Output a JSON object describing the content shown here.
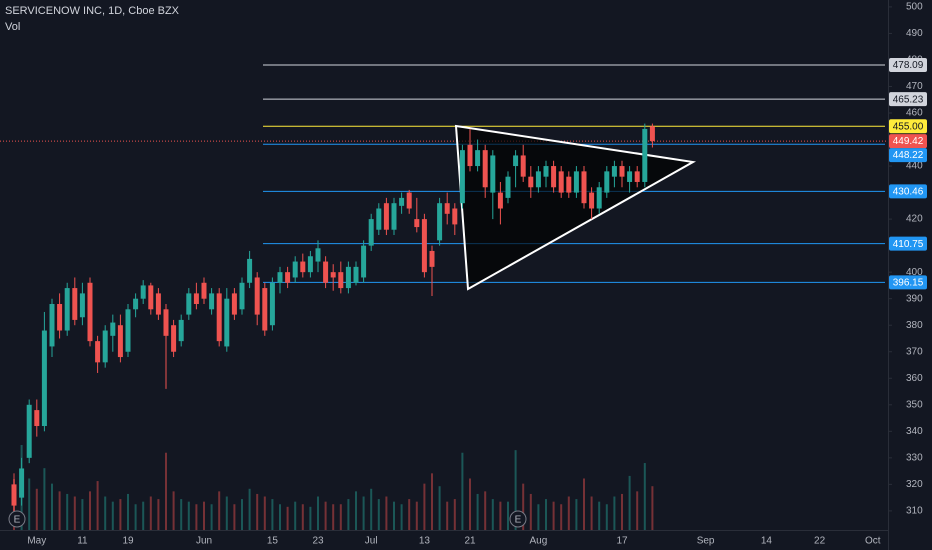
{
  "chart_data": {
    "type": "candlestick",
    "title": "SERVICENOW INC, 1D, Cboe BZX",
    "volume_label": "Vol",
    "events": [
      "E",
      "E"
    ],
    "up_color": "#26a69a",
    "down_color": "#ef5350",
    "categories": [
      null,
      null,
      null,
      "May",
      null,
      null,
      null,
      null,
      null,
      "11",
      null,
      null,
      null,
      null,
      null,
      "19",
      null,
      null,
      null,
      null,
      null,
      null,
      null,
      null,
      null,
      "Jun",
      null,
      null,
      null,
      null,
      null,
      null,
      null,
      null,
      "15",
      null,
      null,
      null,
      null,
      null,
      "23",
      null,
      null,
      null,
      null,
      null,
      null,
      "Jul",
      null,
      null,
      null,
      null,
      null,
      null,
      "13",
      null,
      null,
      null,
      null,
      null,
      "21",
      null,
      null,
      null,
      null,
      null,
      null,
      null,
      null,
      "Aug",
      null,
      null,
      null,
      null,
      null,
      null,
      null,
      null,
      null,
      null,
      "17",
      null,
      null,
      null,
      null,
      null,
      null,
      null,
      null,
      null,
      null,
      "Sep",
      null,
      null,
      null,
      null,
      null,
      null,
      null,
      "14",
      null,
      null,
      null,
      null,
      null,
      null,
      "22",
      null,
      null,
      null,
      null,
      null,
      null,
      "Oct",
      null,
      null
    ],
    "open": [
      320,
      315,
      330,
      348,
      342,
      372,
      388,
      378,
      394,
      383,
      396,
      374,
      366,
      376,
      380,
      370,
      386,
      390,
      395,
      392,
      386,
      380,
      374,
      384,
      392,
      396,
      386,
      392,
      372,
      392,
      386,
      396,
      398,
      394,
      380,
      396,
      400,
      398,
      404,
      400,
      404,
      404,
      400,
      400,
      394,
      396,
      398,
      410,
      416,
      426,
      416,
      425,
      430,
      420,
      420,
      408,
      412,
      426,
      424,
      426,
      448,
      440,
      446,
      430,
      430,
      428,
      440,
      444,
      436,
      432,
      436,
      440,
      438,
      436,
      430,
      438,
      430,
      424,
      430,
      436,
      440,
      434,
      438,
      434,
      455,
      null,
      null,
      null,
      null,
      null,
      null,
      null,
      null,
      null,
      null,
      null,
      null,
      null,
      null,
      null,
      null,
      null,
      null,
      null,
      null,
      null,
      null,
      null,
      null,
      null,
      null,
      null,
      null,
      null,
      null,
      null
    ],
    "high": [
      322,
      330,
      352,
      352,
      385,
      390,
      392,
      396,
      398,
      396,
      398,
      376,
      380,
      384,
      384,
      388,
      392,
      397,
      396,
      394,
      388,
      382,
      384,
      394,
      396,
      398,
      394,
      394,
      394,
      394,
      398,
      408,
      400,
      396,
      398,
      402,
      402,
      406,
      407,
      408,
      412,
      406,
      403,
      404,
      404,
      404,
      412,
      422,
      426,
      428,
      428,
      430,
      431,
      428,
      422,
      410,
      428,
      430,
      426,
      448,
      454,
      450,
      448,
      446,
      434,
      438,
      446,
      448,
      440,
      440,
      442,
      442,
      440,
      438,
      440,
      440,
      432,
      434,
      440,
      442,
      442,
      440,
      440,
      456,
      456,
      null,
      null,
      null,
      null,
      null,
      null,
      null,
      null,
      null,
      null,
      null,
      null,
      null,
      null,
      null,
      null,
      null,
      null,
      null,
      null,
      null,
      null,
      null,
      null,
      null,
      null,
      null,
      null,
      null,
      null,
      null
    ],
    "low": [
      309,
      312,
      328,
      338,
      340,
      368,
      375,
      376,
      380,
      380,
      372,
      362,
      364,
      370,
      366,
      368,
      383,
      388,
      384,
      382,
      356,
      368,
      372,
      382,
      386,
      388,
      384,
      372,
      370,
      382,
      384,
      394,
      380,
      376,
      378,
      392,
      394,
      396,
      398,
      398,
      400,
      394,
      393,
      392,
      392,
      395,
      396,
      408,
      414,
      414,
      414,
      422,
      422,
      415,
      398,
      391,
      410,
      418,
      414,
      424,
      438,
      438,
      428,
      420,
      418,
      426,
      432,
      434,
      428,
      430,
      432,
      430,
      428,
      428,
      428,
      424,
      420,
      422,
      428,
      432,
      432,
      430,
      432,
      432,
      447,
      null,
      null,
      null,
      null,
      null,
      null,
      null,
      null,
      null,
      null,
      null,
      null,
      null,
      null,
      null,
      null,
      null,
      null,
      null,
      null,
      null,
      null,
      null,
      null,
      null,
      null,
      null,
      null,
      null,
      null,
      null
    ],
    "close": [
      312,
      326,
      350,
      342,
      378,
      388,
      378,
      394,
      382,
      392,
      374,
      366,
      378,
      381,
      368,
      386,
      390,
      395,
      386,
      384,
      376,
      370,
      382,
      392,
      388,
      390,
      392,
      374,
      390,
      384,
      396,
      405,
      384,
      378,
      396,
      400,
      396,
      404,
      400,
      406,
      409,
      396,
      398,
      394,
      402,
      402,
      410,
      420,
      424,
      416,
      426,
      428,
      424,
      417,
      400,
      402,
      426,
      422,
      418,
      446,
      440,
      446,
      432,
      444,
      424,
      436,
      444,
      436,
      432,
      438,
      440,
      432,
      430,
      430,
      438,
      426,
      424,
      432,
      438,
      440,
      436,
      438,
      434,
      454,
      449.42,
      null,
      null,
      null,
      null,
      null,
      null,
      null,
      null,
      null,
      null,
      null,
      null,
      null,
      null,
      null,
      null,
      null,
      null,
      null,
      null,
      null,
      null,
      null,
      null,
      null,
      null,
      null,
      null,
      null,
      null,
      null
    ],
    "volume": [
      2.2,
      3.3,
      2.0,
      1.6,
      2.4,
      1.8,
      1.5,
      1.4,
      1.3,
      1.2,
      1.5,
      1.9,
      1.3,
      1.1,
      1.2,
      1.4,
      1.0,
      1.1,
      1.3,
      1.2,
      3.0,
      1.5,
      1.2,
      1.1,
      1.0,
      1.1,
      1.0,
      1.5,
      1.3,
      1.0,
      1.2,
      1.6,
      1.4,
      1.3,
      1.2,
      1.0,
      0.9,
      1.1,
      1.0,
      0.9,
      1.3,
      1.1,
      1.0,
      1.0,
      1.2,
      1.5,
      1.3,
      1.6,
      1.2,
      1.3,
      1.1,
      1.0,
      1.2,
      1.1,
      1.8,
      2.2,
      1.7,
      1.1,
      1.2,
      3.0,
      2.0,
      1.4,
      1.5,
      1.2,
      1.1,
      1.1,
      3.1,
      1.8,
      1.4,
      1.0,
      1.2,
      1.1,
      1.0,
      1.3,
      1.2,
      2.0,
      1.3,
      1.1,
      1.0,
      1.3,
      1.4,
      2.1,
      1.5,
      2.6,
      1.7,
      null,
      null,
      null,
      null,
      null,
      null,
      null,
      null,
      null,
      null,
      null,
      null,
      null,
      null,
      null,
      null,
      null,
      null,
      null,
      null,
      null,
      null,
      null,
      null,
      null,
      null,
      null,
      null,
      null,
      null,
      null
    ],
    "ylim": [
      302.8,
      502.6
    ],
    "yticks": [
      310,
      320,
      330,
      340,
      350,
      360,
      370,
      380,
      390,
      400,
      410,
      420,
      430,
      440,
      450,
      460,
      470,
      480,
      490,
      500
    ],
    "levels": [
      {
        "value": 478.09,
        "color": "#d1d4dc"
      },
      {
        "value": 465.23,
        "color": "#d1d4dc"
      },
      {
        "value": 455,
        "label": "455.00",
        "color": "#ffeb3b"
      },
      {
        "value": 448.22,
        "color": "#2196f3"
      },
      {
        "value": 430.46,
        "color": "#2196f3"
      },
      {
        "value": 410.75,
        "color": "#2196f3"
      },
      {
        "value": 396.15,
        "color": "#2196f3"
      }
    ]
  }
}
